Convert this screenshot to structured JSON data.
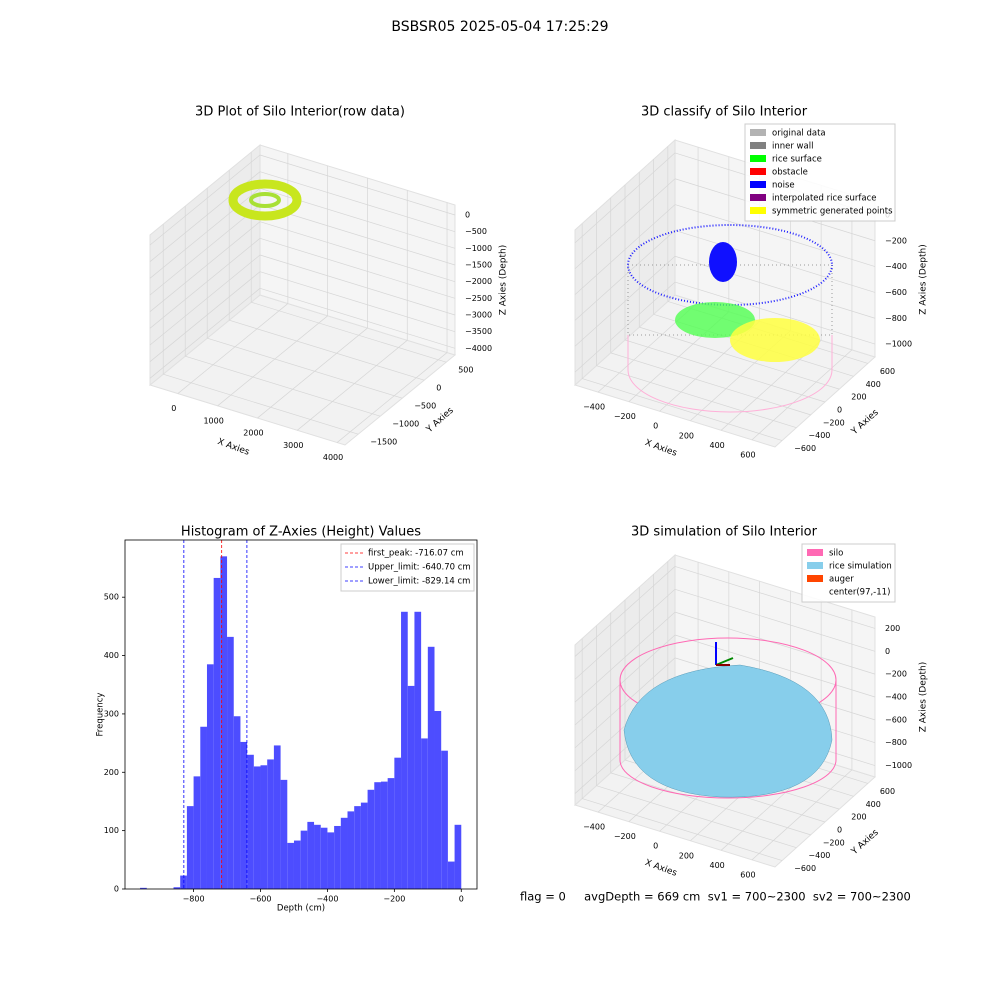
{
  "title": "BSBSR05 2025-05-04 17:25:29",
  "footer": "flag = 0     avgDepth = 669 cm  sv1 = 700~2300  sv2 = 700~2300",
  "chart_data": [
    {
      "type": "scatter3d",
      "title": "3D Plot of Silo Interior(row data)",
      "xlabel": "X Axies",
      "ylabel": "Y Axies",
      "zlabel": "Z Axies (Depth)",
      "xlim": [
        -700,
        4200
      ],
      "ylim": [
        -1800,
        700
      ],
      "zlim": [
        -4200,
        300
      ],
      "xticks": [
        0,
        1000,
        2000,
        3000,
        4000
      ],
      "yticks": [
        {
          "value": -1500,
          "label": "−1500"
        },
        {
          "value": -1000,
          "label": "−1000"
        },
        {
          "value": -500,
          "label": "−500"
        },
        0,
        500
      ],
      "zticks": [
        0,
        {
          "value": -500,
          "label": "−500"
        },
        {
          "value": -1000,
          "label": "−1000"
        },
        {
          "value": -1500,
          "label": "−1500"
        },
        {
          "value": -2000,
          "label": "−2000"
        },
        {
          "value": -2500,
          "label": "−2500"
        },
        {
          "value": -3000,
          "label": "−3000"
        },
        {
          "value": -3500,
          "label": "−3500"
        },
        {
          "value": -4000,
          "label": "−4000"
        }
      ]
    },
    {
      "type": "scatter3d",
      "title": "3D classify of Silo Interior",
      "xlabel": "X Axies",
      "ylabel": "Y Axies",
      "zlabel": "Z Axies (Depth)",
      "xlim": [
        -550,
        750
      ],
      "ylim": [
        -700,
        700
      ],
      "zlim": [
        -1100,
        100
      ],
      "xticks": [
        {
          "value": -400,
          "label": "−400"
        },
        {
          "value": -200,
          "label": "−200"
        },
        0,
        200,
        400,
        600
      ],
      "yticks": [
        {
          "value": -600,
          "label": "−600"
        },
        {
          "value": -400,
          "label": "−400"
        },
        {
          "value": -200,
          "label": "−200"
        },
        0,
        200,
        400,
        600
      ],
      "zticks": [
        0,
        {
          "value": -200,
          "label": "−200"
        },
        {
          "value": -400,
          "label": "−400"
        },
        {
          "value": -600,
          "label": "−600"
        },
        {
          "value": -800,
          "label": "−800"
        },
        {
          "value": -1000,
          "label": "−1000"
        }
      ],
      "legend": [
        {
          "name": "original data",
          "color": "#b3b3b3"
        },
        {
          "name": "inner wall",
          "color": "#808080"
        },
        {
          "name": "rice surface",
          "color": "#00ff00"
        },
        {
          "name": "obstacle",
          "color": "#ff0000"
        },
        {
          "name": "noise",
          "color": "#0000ff"
        },
        {
          "name": "interpolated rice surface",
          "color": "#800080"
        },
        {
          "name": "symmetric generated points",
          "color": "#ffff00"
        }
      ]
    },
    {
      "type": "histogram",
      "title": "Histogram of Z-Axies (Height) Values",
      "xlabel": "Depth (cm)",
      "ylabel": "Frequency",
      "color": "#4d4dff",
      "xlim": [
        -1005,
        47
      ],
      "ylim": [
        0,
        598
      ],
      "xticks": [
        {
          "value": -800,
          "label": "−800"
        },
        {
          "value": -600,
          "label": "−600"
        },
        {
          "value": -400,
          "label": "−400"
        },
        {
          "value": -200,
          "label": "−200"
        },
        0
      ],
      "yticks": [
        0,
        100,
        200,
        300,
        400,
        500
      ],
      "bins": [
        -960,
        -940,
        -920,
        -900,
        -880,
        -860,
        -840,
        -820,
        -800,
        -780,
        -760,
        -740,
        -720,
        -700,
        -680,
        -660,
        -640,
        -620,
        -600,
        -580,
        -560,
        -540,
        -520,
        -500,
        -480,
        -460,
        -440,
        -420,
        -400,
        -380,
        -360,
        -340,
        -320,
        -300,
        -280,
        -260,
        -240,
        -220,
        -200,
        -180,
        -160,
        -140,
        -120,
        -100,
        -80,
        -60,
        -40,
        -20,
        0
      ],
      "counts": [
        2,
        0,
        0,
        0,
        0,
        3,
        23,
        142,
        193,
        278,
        385,
        533,
        570,
        432,
        296,
        252,
        230,
        210,
        212,
        222,
        246,
        187,
        79,
        83,
        100,
        115,
        110,
        105,
        97,
        108,
        122,
        133,
        142,
        148,
        170,
        183,
        184,
        190,
        225,
        475,
        348,
        475,
        258,
        415,
        305,
        237,
        47,
        110
      ],
      "vlines": [
        {
          "name": "first_peak: -716.07 cm",
          "value": -716.07,
          "color": "#ff0000"
        },
        {
          "name": "Upper_limit: -640.70 cm",
          "value": -640.7,
          "color": "#0000ff"
        },
        {
          "name": "Lower_limit: -829.14 cm",
          "value": -829.14,
          "color": "#0000ff"
        }
      ]
    },
    {
      "type": "scatter3d",
      "title": "3D simulation of Silo Interior",
      "xlabel": "X Axies",
      "ylabel": "Y Axies",
      "zlabel": "Z Axies (Depth)",
      "xlim": [
        -550,
        750
      ],
      "ylim": [
        -700,
        700
      ],
      "zlim": [
        -1100,
        300
      ],
      "xticks": [
        {
          "value": -400,
          "label": "−400"
        },
        {
          "value": -200,
          "label": "−200"
        },
        0,
        200,
        400,
        600
      ],
      "yticks": [
        {
          "value": -600,
          "label": "−600"
        },
        {
          "value": -400,
          "label": "−400"
        },
        {
          "value": -200,
          "label": "−200"
        },
        0,
        200,
        400,
        600
      ],
      "zticks": [
        200,
        0,
        {
          "value": -200,
          "label": "−200"
        },
        {
          "value": -400,
          "label": "−400"
        },
        {
          "value": -600,
          "label": "−600"
        },
        {
          "value": -800,
          "label": "−800"
        },
        {
          "value": -1000,
          "label": "−1000"
        }
      ],
      "legend": [
        {
          "name": "silo",
          "color": "#ff69b4"
        },
        {
          "name": "rice simulation",
          "color": "#87ceeb"
        },
        {
          "name": "auger",
          "color": "#ff4500"
        },
        {
          "name": "center(97,-11)",
          "color": "#ffffff"
        }
      ]
    }
  ]
}
